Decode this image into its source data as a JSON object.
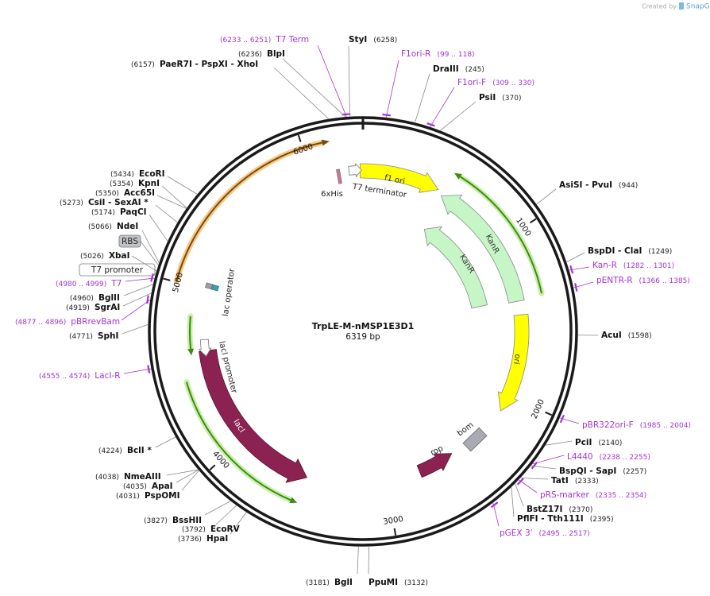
{
  "header": {
    "credit": "Created by",
    "brand": "SnapGene"
  },
  "map": {
    "name": "TrpLE-M-nMSP1E3D1",
    "length": "6319 bp",
    "ticks": [
      1000,
      2000,
      3000,
      4000,
      5000,
      6000
    ]
  },
  "features": [
    {
      "name": "f1 ori"
    },
    {
      "name": "KanR"
    },
    {
      "name": "KanR"
    },
    {
      "name": "ori"
    },
    {
      "name": "bom"
    },
    {
      "name": "rop"
    },
    {
      "name": "lacI"
    },
    {
      "name": "lacI promoter"
    },
    {
      "name": "lac operator"
    },
    {
      "name": "6xHis"
    },
    {
      "name": "T7 terminator"
    },
    {
      "name": "T7 promoter"
    },
    {
      "name": "RBS"
    }
  ],
  "sites": [
    {
      "name": "T7 Term",
      "position": "(6233 .. 6251)"
    },
    {
      "name": "StyI",
      "position": "(6258)"
    },
    {
      "name": "BlpI",
      "position": "(6236)"
    },
    {
      "name": "PaeR7I - PspXI - XhoI",
      "position": "(6157)"
    },
    {
      "name": "F1ori-R",
      "position": "(99 .. 118)"
    },
    {
      "name": "DraIII",
      "position": "(245)"
    },
    {
      "name": "F1ori-F",
      "position": "(309 .. 330)"
    },
    {
      "name": "PsiI",
      "position": "(370)"
    },
    {
      "name": "AsiSI - PvuI",
      "position": "(944)"
    },
    {
      "name": "BspDI - ClaI",
      "position": "(1249)"
    },
    {
      "name": "Kan-R",
      "position": "(1282 .. 1301)"
    },
    {
      "name": "pENTR-R",
      "position": "(1366 .. 1385)"
    },
    {
      "name": "AcuI",
      "position": "(1598)"
    },
    {
      "name": "pBR322ori-F",
      "position": "(1985 .. 2004)"
    },
    {
      "name": "PciI",
      "position": "(2140)"
    },
    {
      "name": "L4440",
      "position": "(2238 .. 2255)"
    },
    {
      "name": "BspQI - SapI",
      "position": "(2257)"
    },
    {
      "name": "TatI",
      "position": "(2333)"
    },
    {
      "name": "pRS-marker",
      "position": "(2335 .. 2354)"
    },
    {
      "name": "BstZ17I",
      "position": "(2370)"
    },
    {
      "name": "PflFI - Tth111I",
      "position": "(2395)"
    },
    {
      "name": "pGEX 3'",
      "position": "(2495 .. 2517)"
    },
    {
      "name": "PpuMI",
      "position": "(3132)"
    },
    {
      "name": "BglI",
      "position": "(3181)"
    },
    {
      "name": "HpaI",
      "position": "(3736)"
    },
    {
      "name": "EcoRV",
      "position": "(3792)"
    },
    {
      "name": "BssHII",
      "position": "(3827)"
    },
    {
      "name": "PspOMI",
      "position": "(4031)"
    },
    {
      "name": "ApaI",
      "position": "(4035)"
    },
    {
      "name": "NmeAIII",
      "position": "(4038)"
    },
    {
      "name": "BclI *",
      "position": "(4224)"
    },
    {
      "name": "LacI-R",
      "position": "(4555 .. 4574)"
    },
    {
      "name": "SphI",
      "position": "(4771)"
    },
    {
      "name": "pBRrevBam",
      "position": "(4877 .. 4896)"
    },
    {
      "name": "SgrAI",
      "position": "(4919)"
    },
    {
      "name": "BglII",
      "position": "(4960)"
    },
    {
      "name": "T7",
      "position": "(4980 .. 4999)"
    },
    {
      "name": "XbaI",
      "position": "(5026)"
    },
    {
      "name": "NdeI",
      "position": "(5066)"
    },
    {
      "name": "PaqCI",
      "position": "(5174)"
    },
    {
      "name": "CsiI - SexAI *",
      "position": "(5273)"
    },
    {
      "name": "Acc65I",
      "position": "(5350)"
    },
    {
      "name": "KpnI",
      "position": "(5354)"
    },
    {
      "name": "EcoRI",
      "position": "(5434)"
    }
  ]
}
